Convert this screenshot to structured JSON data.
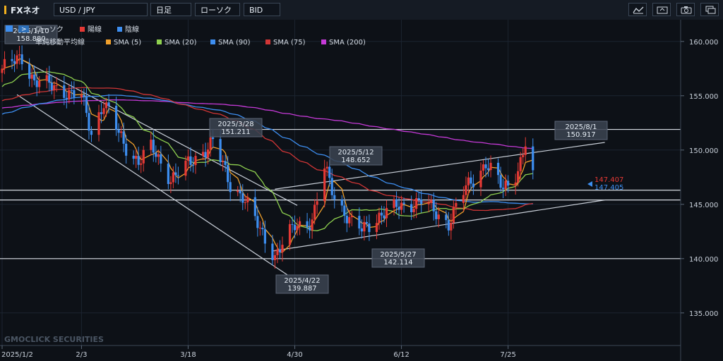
{
  "toolbar": {
    "brand": "FXネオ",
    "symbol": "USD / JPY",
    "period": "日足",
    "chart_style": "ローソク",
    "price_type": "BID"
  },
  "legend": {
    "candle_label": "ローソク",
    "up_label": "陽線",
    "down_label": "陰線",
    "sma_label": "単純移動平均線",
    "sma_items": [
      "SMA (5)",
      "SMA (20)",
      "SMA (90)",
      "SMA (75)",
      "SMA (200)"
    ]
  },
  "watermark": "GMOCLICK SECURITIES",
  "price_tags": {
    "bid": "147.407",
    "ask": "147.405"
  },
  "colors": {
    "up": "#e53935",
    "down": "#3d8ef0",
    "sma5": "#f0a02c",
    "sma20": "#8fd14f",
    "sma90": "#3d8ef0",
    "sma75": "#d23636",
    "sma200": "#c63ad8"
  },
  "chart_data": {
    "type": "candlestick",
    "series": [
      {
        "name": "SMA (5)"
      },
      {
        "name": "SMA (20)"
      },
      {
        "name": "SMA (90)"
      },
      {
        "name": "SMA (75)"
      },
      {
        "name": "SMA (200)"
      }
    ],
    "x_ticks": [
      "2025/1/2",
      "2/3",
      "3/18",
      "4/30",
      "6/12",
      "7/25"
    ],
    "y_ticks": [
      "160.000",
      "155.000",
      "150.000",
      "145.000",
      "140.000",
      "135.000"
    ],
    "ylim": [
      132,
      162
    ],
    "horizontal_lines": [
      151.9,
      146.3,
      145.4,
      140.0
    ],
    "annotations": [
      {
        "date": "2025/1/10",
        "value": "158.880"
      },
      {
        "date": "2025/3/28",
        "value": "151.211"
      },
      {
        "date": "2025/5/12",
        "value": "148.652"
      },
      {
        "date": "2025/4/22",
        "value": "139.887"
      },
      {
        "date": "2025/5/27",
        "value": "142.114"
      },
      {
        "date": "2025/8/1",
        "value": "150.917"
      }
    ],
    "last_price": 147.407
  }
}
